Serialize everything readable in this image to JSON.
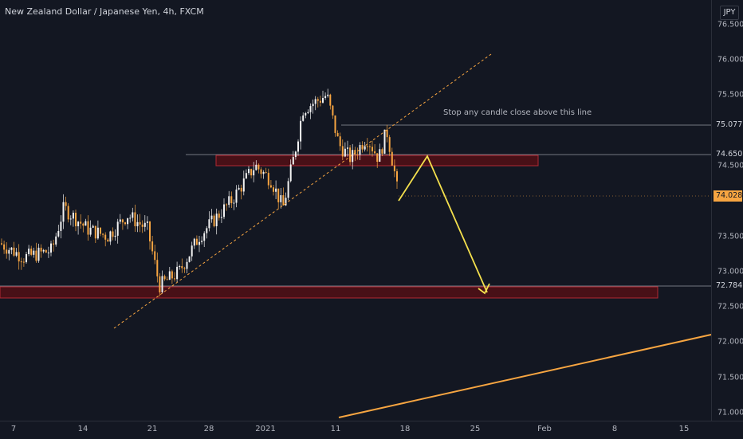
{
  "header": {
    "symbol_title": "New Zealand Dollar / Japanese Yen, 4h, FXCM",
    "currency_button": "JPY"
  },
  "price_axis": {
    "ticks": [
      "76.500",
      "76.000",
      "75.500",
      "75.077",
      "74.650",
      "74.500",
      "74.028",
      "73.500",
      "73.000",
      "72.784",
      "72.500",
      "72.000",
      "71.500",
      "71.000"
    ]
  },
  "price_labels": {
    "line_upper": "75.077",
    "line_middle": "74.650",
    "last_price": "74.028",
    "line_lower": "72.784"
  },
  "time_axis": {
    "ticks": [
      "7",
      "14",
      "21",
      "28",
      "2021",
      "11",
      "18",
      "25",
      "Feb",
      "8",
      "15"
    ]
  },
  "annotations": {
    "stop_note": "Stop any candle close  above this line"
  },
  "colors": {
    "background": "#131722",
    "candle_up": "#f2f2f2",
    "candle_down": "#f7a541",
    "zone_fill": "#5b0f14",
    "zone_border": "#b22833",
    "trendline": "#f7a541",
    "projection": "#f4e04d",
    "last_price_bg": "#f7a541",
    "axis_text": "#b2b5be"
  }
}
